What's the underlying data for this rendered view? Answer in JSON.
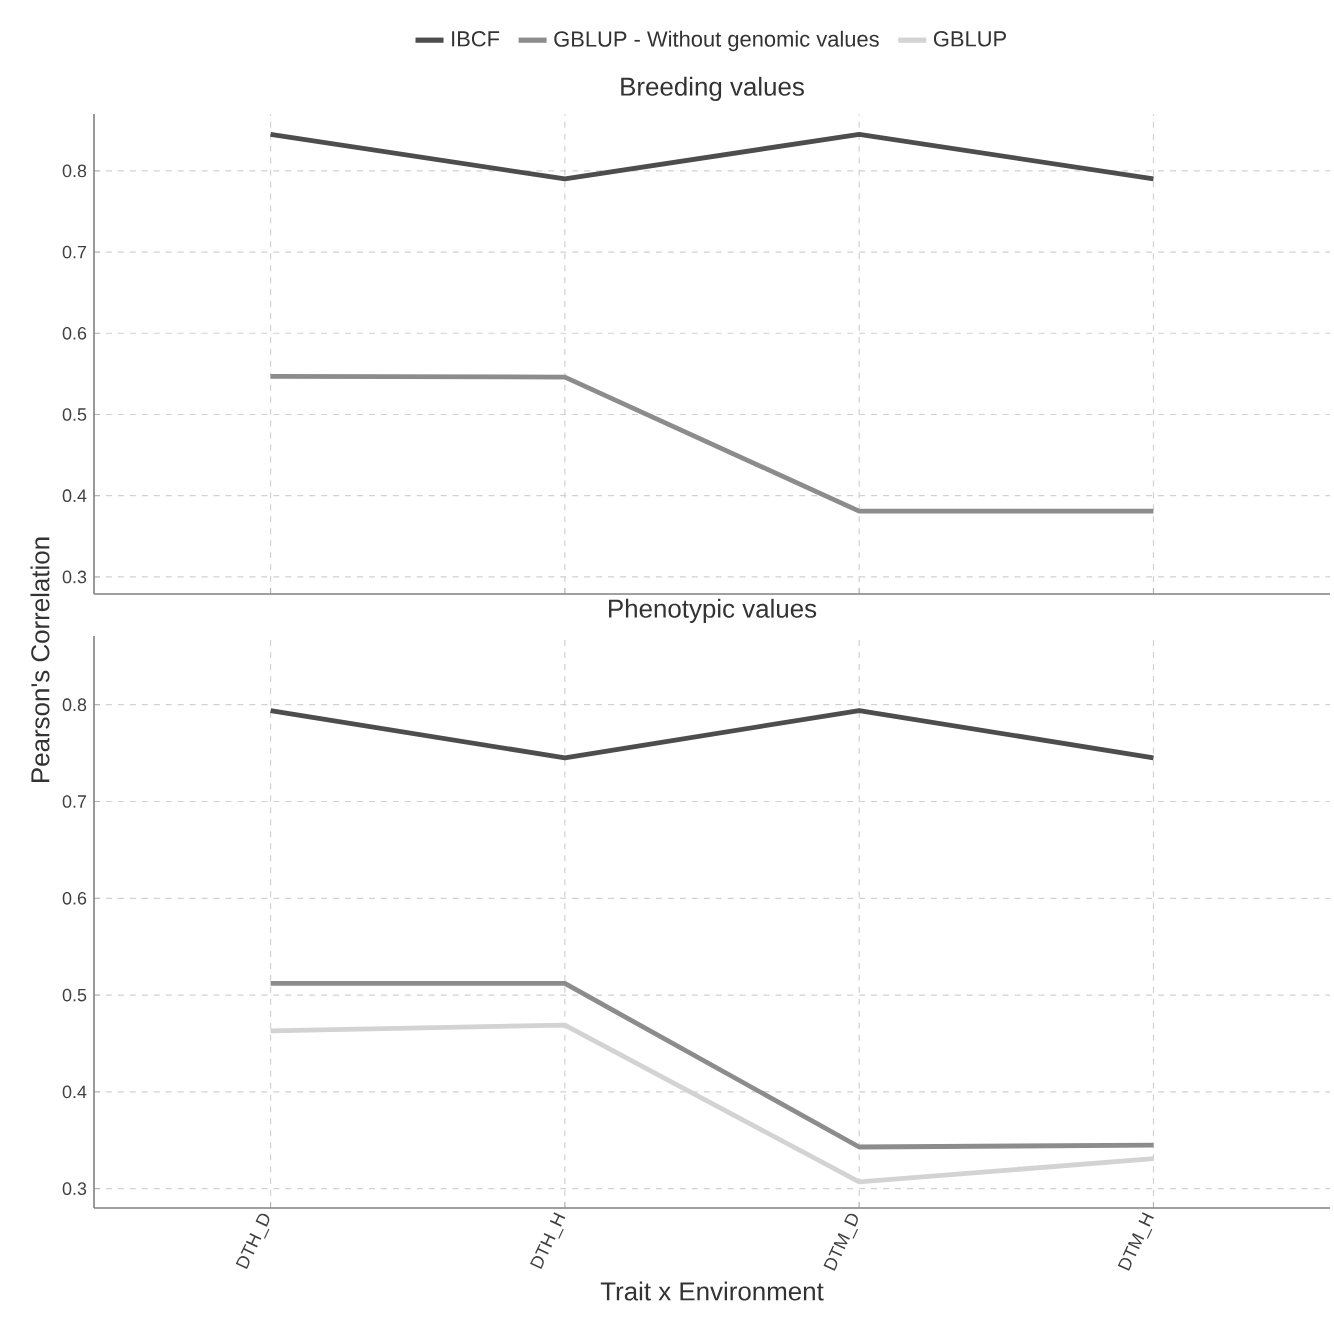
{
  "chart_data": [
    {
      "type": "line",
      "title": "Breeding values",
      "categories": [
        null,
        null,
        null,
        null
      ],
      "series": [
        {
          "name": "IBCF",
          "color": "#4d4d4d",
          "values": [
            0.845,
            0.79,
            0.845,
            0.79
          ]
        },
        {
          "name": "GBLUP - Without genomic values",
          "color": "#8c8c8c",
          "values": [
            0.547,
            0.546,
            0.381,
            0.381
          ]
        },
        {
          "name": "GBLUP",
          "color": "#d3d3d3",
          "values": [
            null,
            null,
            null,
            null
          ]
        }
      ],
      "ylim": [
        0.279,
        0.87
      ],
      "yticks": [
        0.3,
        0.4,
        0.5,
        0.6,
        0.7,
        0.8
      ],
      "grid": true,
      "legend": "top",
      "tick_labels": "y"
    },
    {
      "type": "line",
      "title": "Phenotypic values",
      "xlabel": "Trait x Environment",
      "ylabel": "Pearson's Correlation",
      "categories": [
        "DTH_D",
        "DTH_H",
        "DTM_D",
        "DTM_H"
      ],
      "series": [
        {
          "color": "#4d4d4d",
          "values": [
            0.794,
            0.745,
            0.794,
            0.745
          ]
        },
        {
          "color": "#8c8c8c",
          "values": [
            0.512,
            0.512,
            0.343,
            0.345
          ]
        },
        {
          "color": "#d3d3d3",
          "values": [
            0.463,
            0.469,
            0.307,
            0.331
          ]
        }
      ],
      "ylim": [
        0.28,
        0.871
      ],
      "yticks": [
        0.3,
        0.4,
        0.5,
        0.6,
        0.7,
        0.8
      ],
      "grid": true
    }
  ]
}
